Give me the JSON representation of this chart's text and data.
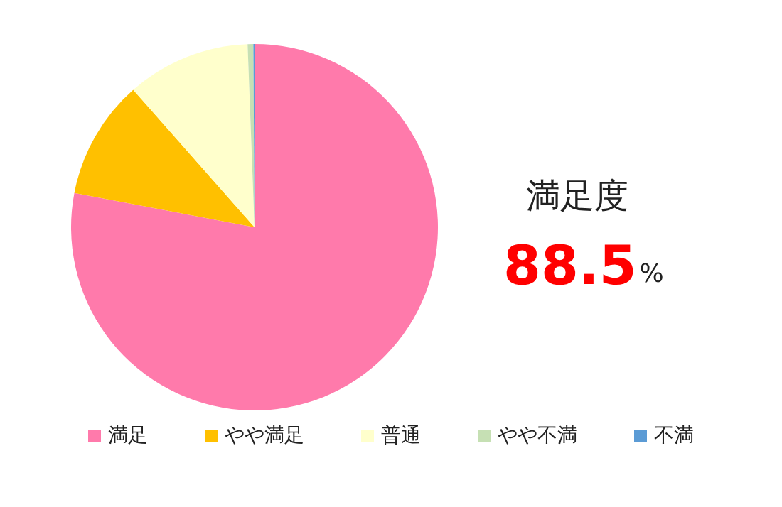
{
  "chart_data": {
    "type": "pie",
    "categories": [
      "満足",
      "やや満足",
      "普通",
      "やや不満",
      "不満"
    ],
    "values": [
      78.0,
      10.5,
      10.9,
      0.5,
      0.1
    ],
    "colors": [
      "#ff7aab",
      "#ffc000",
      "#ffffcc",
      "#c6e0b4",
      "#5b9bd5"
    ],
    "annotations": [
      "満足度",
      "88.5%"
    ],
    "legend": "bottom"
  }
}
